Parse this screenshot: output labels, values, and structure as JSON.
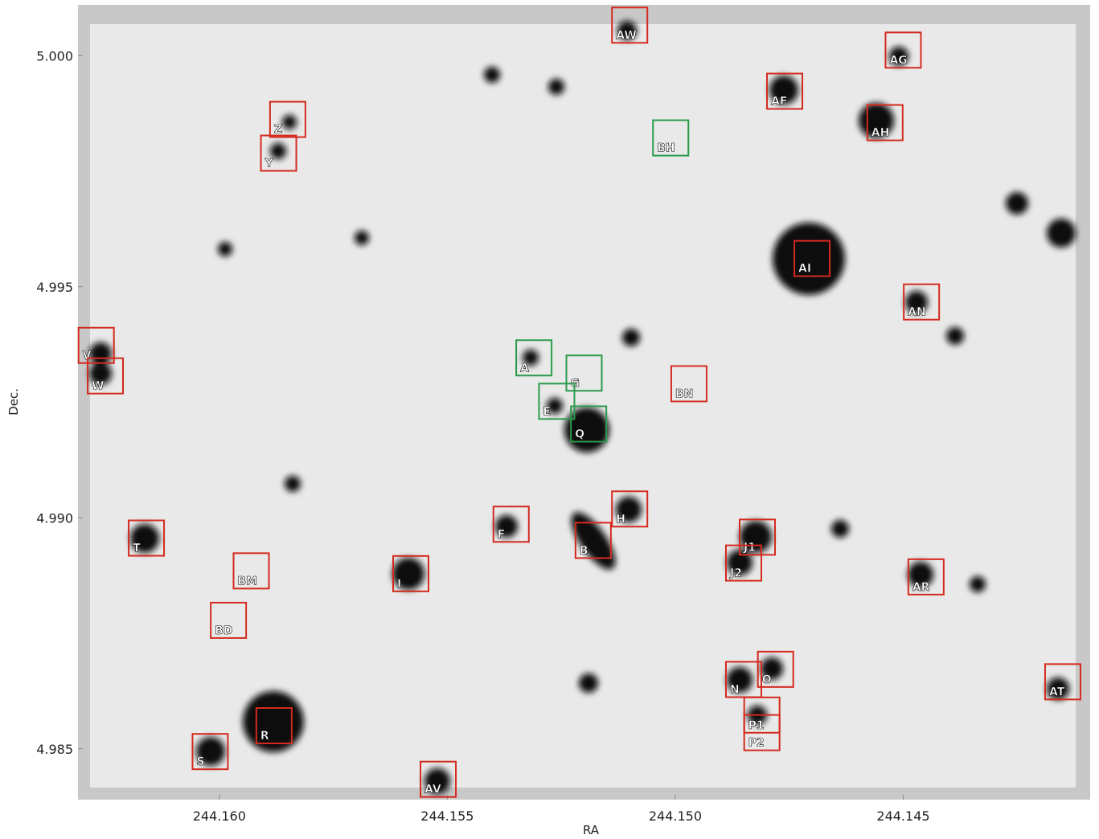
{
  "chart_data": {
    "type": "scatter",
    "x_label": "RA",
    "y_label": "Dec.",
    "xlim": [
      244.1631,
      244.1409
    ],
    "ylim": [
      4.9839,
      5.0011
    ],
    "xticks": [
      {
        "value": 244.16,
        "label": "244.160"
      },
      244.155,
      {
        "value": 244.15,
        "label": "244.150"
      },
      244.145
    ],
    "yticks": [
      {
        "value": 5.0,
        "label": "5.000"
      },
      4.995,
      {
        "value": 4.99,
        "label": "4.990"
      },
      4.985
    ],
    "labels": [
      "AW",
      "AG",
      "AF",
      "AH",
      "Z",
      "Y",
      "BH",
      "AI",
      "AN",
      "V",
      "W",
      "A",
      "G",
      "BN",
      "E",
      "Q",
      "H",
      "F",
      "B",
      "J1",
      "J2",
      "T",
      "BM",
      "I",
      "AR",
      "BD",
      "O",
      "N",
      "AT",
      "P1",
      "P2",
      "R",
      "S",
      "AV"
    ],
    "x": [
      244.151,
      244.145,
      244.1476,
      244.1454,
      244.1585,
      244.1587,
      244.1501,
      244.147,
      244.1446,
      244.1627,
      244.1625,
      244.1531,
      244.152,
      244.1497,
      244.1526,
      244.1519,
      244.151,
      244.1536,
      244.1518,
      244.1482,
      244.1485,
      244.1616,
      244.1593,
      244.1558,
      244.1445,
      244.1598,
      244.1478,
      244.1485,
      244.1415,
      244.1481,
      244.1481,
      244.1588,
      244.1602,
      244.1552
    ],
    "y": [
      5.00066,
      5.00012,
      4.99923,
      4.99855,
      4.99862,
      4.99789,
      4.99822,
      4.99561,
      4.99467,
      4.99373,
      4.99307,
      4.99346,
      4.99313,
      4.9929,
      4.99252,
      4.99203,
      4.99019,
      4.98986,
      4.98951,
      4.98958,
      4.98902,
      4.98956,
      4.98885,
      4.98879,
      4.98872,
      4.98778,
      4.98672,
      4.9865,
      4.98645,
      4.98573,
      4.98535,
      4.9855,
      4.98494,
      4.98434
    ],
    "colors": [
      "#d42a1e",
      "#d42a1e",
      "#d42a1e",
      "#d42a1e",
      "#d42a1e",
      "#d42a1e",
      "#2a9a4a",
      "#d42a1e",
      "#d42a1e",
      "#d42a1e",
      "#d42a1e",
      "#2a9a4a",
      "#2a9a4a",
      "#d42a1e",
      "#2a9a4a",
      "#2a9a4a",
      "#d42a1e",
      "#d42a1e",
      "#d42a1e",
      "#d42a1e",
      "#d42a1e",
      "#d42a1e",
      "#d42a1e",
      "#d42a1e",
      "#d42a1e",
      "#d42a1e",
      "#d42a1e",
      "#d42a1e",
      "#d42a1e",
      "#d42a1e",
      "#d42a1e",
      "#d42a1e",
      "#d42a1e",
      "#d42a1e"
    ]
  }
}
